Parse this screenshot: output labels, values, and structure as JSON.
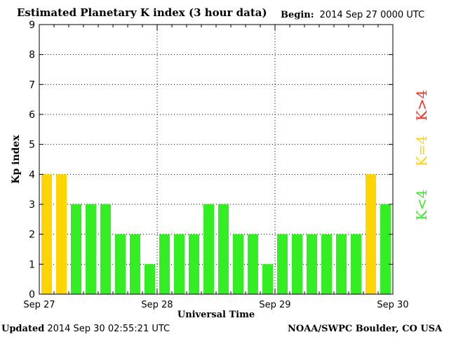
{
  "header": {
    "title": "Estimated Planetary K index (3 hour data)",
    "begin_label": "Begin:",
    "begin_value": "2014 Sep 27 0000 UTC"
  },
  "footer": {
    "updated_label": "Updated",
    "updated_value": "2014 Sep 30 02:55:21 UTC",
    "credit": "NOAA/SWPC Boulder, CO USA"
  },
  "colors": {
    "below_4": "#33ee22",
    "equal_4": "#ffd400",
    "above_4": "#ff2a1a",
    "axis": "#000000"
  },
  "chart_data": {
    "type": "bar",
    "xlabel": "Universal Time",
    "ylabel": "Kp index",
    "ylim": [
      0,
      9
    ],
    "yticks": [
      "0",
      "1",
      "2",
      "3",
      "4",
      "5",
      "6",
      "7",
      "8",
      "9"
    ],
    "x_ticks": [
      "Sep 27",
      "Sep 28",
      "Sep 29",
      "Sep 30"
    ],
    "grid": "dotted vertical at day boundaries, dotted horizontal at each integer Kp",
    "bar_interval_hours": 3,
    "values": [
      4,
      4,
      3,
      3,
      3,
      2,
      2,
      1,
      2,
      2,
      2,
      3,
      3,
      2,
      2,
      1,
      2,
      2,
      2,
      2,
      2,
      2,
      4,
      3
    ],
    "legend": [
      "K<4",
      "K=4",
      "K>4"
    ]
  }
}
